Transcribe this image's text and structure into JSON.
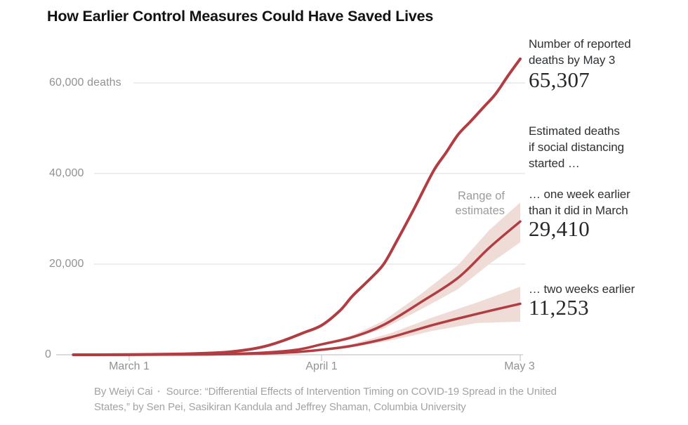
{
  "title": "How Earlier Control Measures Could Have Saved Lives",
  "colors": {
    "line_red": "#b13d42",
    "band_pink": "#efdcd7",
    "grid": "#dbdbdb",
    "axis": "#c7c7c7",
    "axis_label_gray": "#929292",
    "range_label_gray": "#9c9c9c",
    "annotation_dark": "#2e3134",
    "number_dark": "#26282b",
    "title_black": "#121212",
    "footer_gray": "#a3a3a3"
  },
  "y_axis": {
    "labels": [
      {
        "value": 60000,
        "label": "60,000 deaths"
      },
      {
        "value": 40000,
        "label": "40,000"
      },
      {
        "value": 20000,
        "label": "20,000"
      },
      {
        "value": 0,
        "label": "0"
      }
    ]
  },
  "x_axis": {
    "ticks": [
      {
        "day": 9,
        "label": "March 1"
      },
      {
        "day": 40,
        "label": "April 1"
      },
      {
        "day": 72,
        "label": "May 3"
      }
    ]
  },
  "annotations": {
    "reported": {
      "line1": "Number of reported",
      "line2": "deaths by May 3",
      "value": "65,307"
    },
    "estimated_header": [
      "Estimated deaths",
      "if social distancing",
      "started …"
    ],
    "one_week": {
      "line1": "… one week earlier",
      "line2": "than it did in March",
      "value": "29,410"
    },
    "two_week": {
      "line1": "… two weeks earlier",
      "value": "11,253"
    },
    "range_label": [
      "Range of",
      "estimates"
    ]
  },
  "footer": {
    "byline": "By Weiyi Cai",
    "separator": "▪",
    "source_line1": "Source: “Differential Effects of Intervention Timing on COVID-19 Spread in the United",
    "source_line2": "States,” by Sen Pei, Sasikiran Kandula and Jeffrey Shaman, Columbia University"
  },
  "chart_data": {
    "type": "line",
    "title": "How Earlier Control Measures Could Have Saved Lives",
    "x_unit": "days since Feb 21, 2020",
    "xlim": [
      0,
      72
    ],
    "ylim": [
      0,
      65307
    ],
    "x_tick_days": [
      9,
      40,
      72
    ],
    "x_tick_labels": [
      "March 1",
      "April 1",
      "May 3"
    ],
    "gridline_values": [
      20000,
      40000,
      60000
    ],
    "grid": true,
    "legend_position": "right-annotations",
    "series": [
      {
        "name": "Reported deaths",
        "final_value": 65307,
        "days": [
          0,
          6,
          12,
          18,
          24,
          28,
          31,
          34,
          37,
          40,
          43,
          45,
          48,
          50,
          52,
          55,
          58,
          60,
          62,
          64,
          66,
          68,
          70,
          72
        ],
        "values": [
          0,
          20,
          80,
          200,
          500,
          1100,
          1900,
          3200,
          4800,
          6500,
          9800,
          13000,
          17000,
          20000,
          24800,
          32500,
          40500,
          44500,
          48600,
          51500,
          54500,
          57500,
          61500,
          65307
        ]
      },
      {
        "name": "Estimated deaths if social distancing started one week earlier",
        "final_value": 29410,
        "days": [
          0,
          12,
          22,
          30,
          36,
          40,
          45,
          50,
          56,
          62,
          67,
          72
        ],
        "values": [
          0,
          20,
          100,
          400,
          1100,
          2300,
          3900,
          6600,
          11600,
          17000,
          23600,
          29410
        ],
        "band": {
          "days": [
            40,
            45,
            50,
            56,
            62,
            67,
            72
          ],
          "lower": [
            2100,
            3500,
            5800,
            10000,
            14500,
            20000,
            24800
          ],
          "upper": [
            2500,
            4300,
            7500,
            13400,
            19800,
            27500,
            33600
          ]
        }
      },
      {
        "name": "Estimated deaths if social distancing started two weeks earlier",
        "final_value": 11253,
        "days": [
          0,
          12,
          22,
          30,
          36,
          40,
          45,
          51,
          58,
          65,
          72
        ],
        "values": [
          0,
          15,
          70,
          250,
          600,
          1100,
          2000,
          3800,
          6600,
          9000,
          11253
        ],
        "band": {
          "days": [
            40,
            45,
            51,
            58,
            65,
            72
          ],
          "lower": [
            950,
            1700,
            3100,
            5300,
            7000,
            7300
          ],
          "upper": [
            1250,
            2400,
            4700,
            8300,
            11500,
            15000
          ]
        }
      }
    ]
  }
}
